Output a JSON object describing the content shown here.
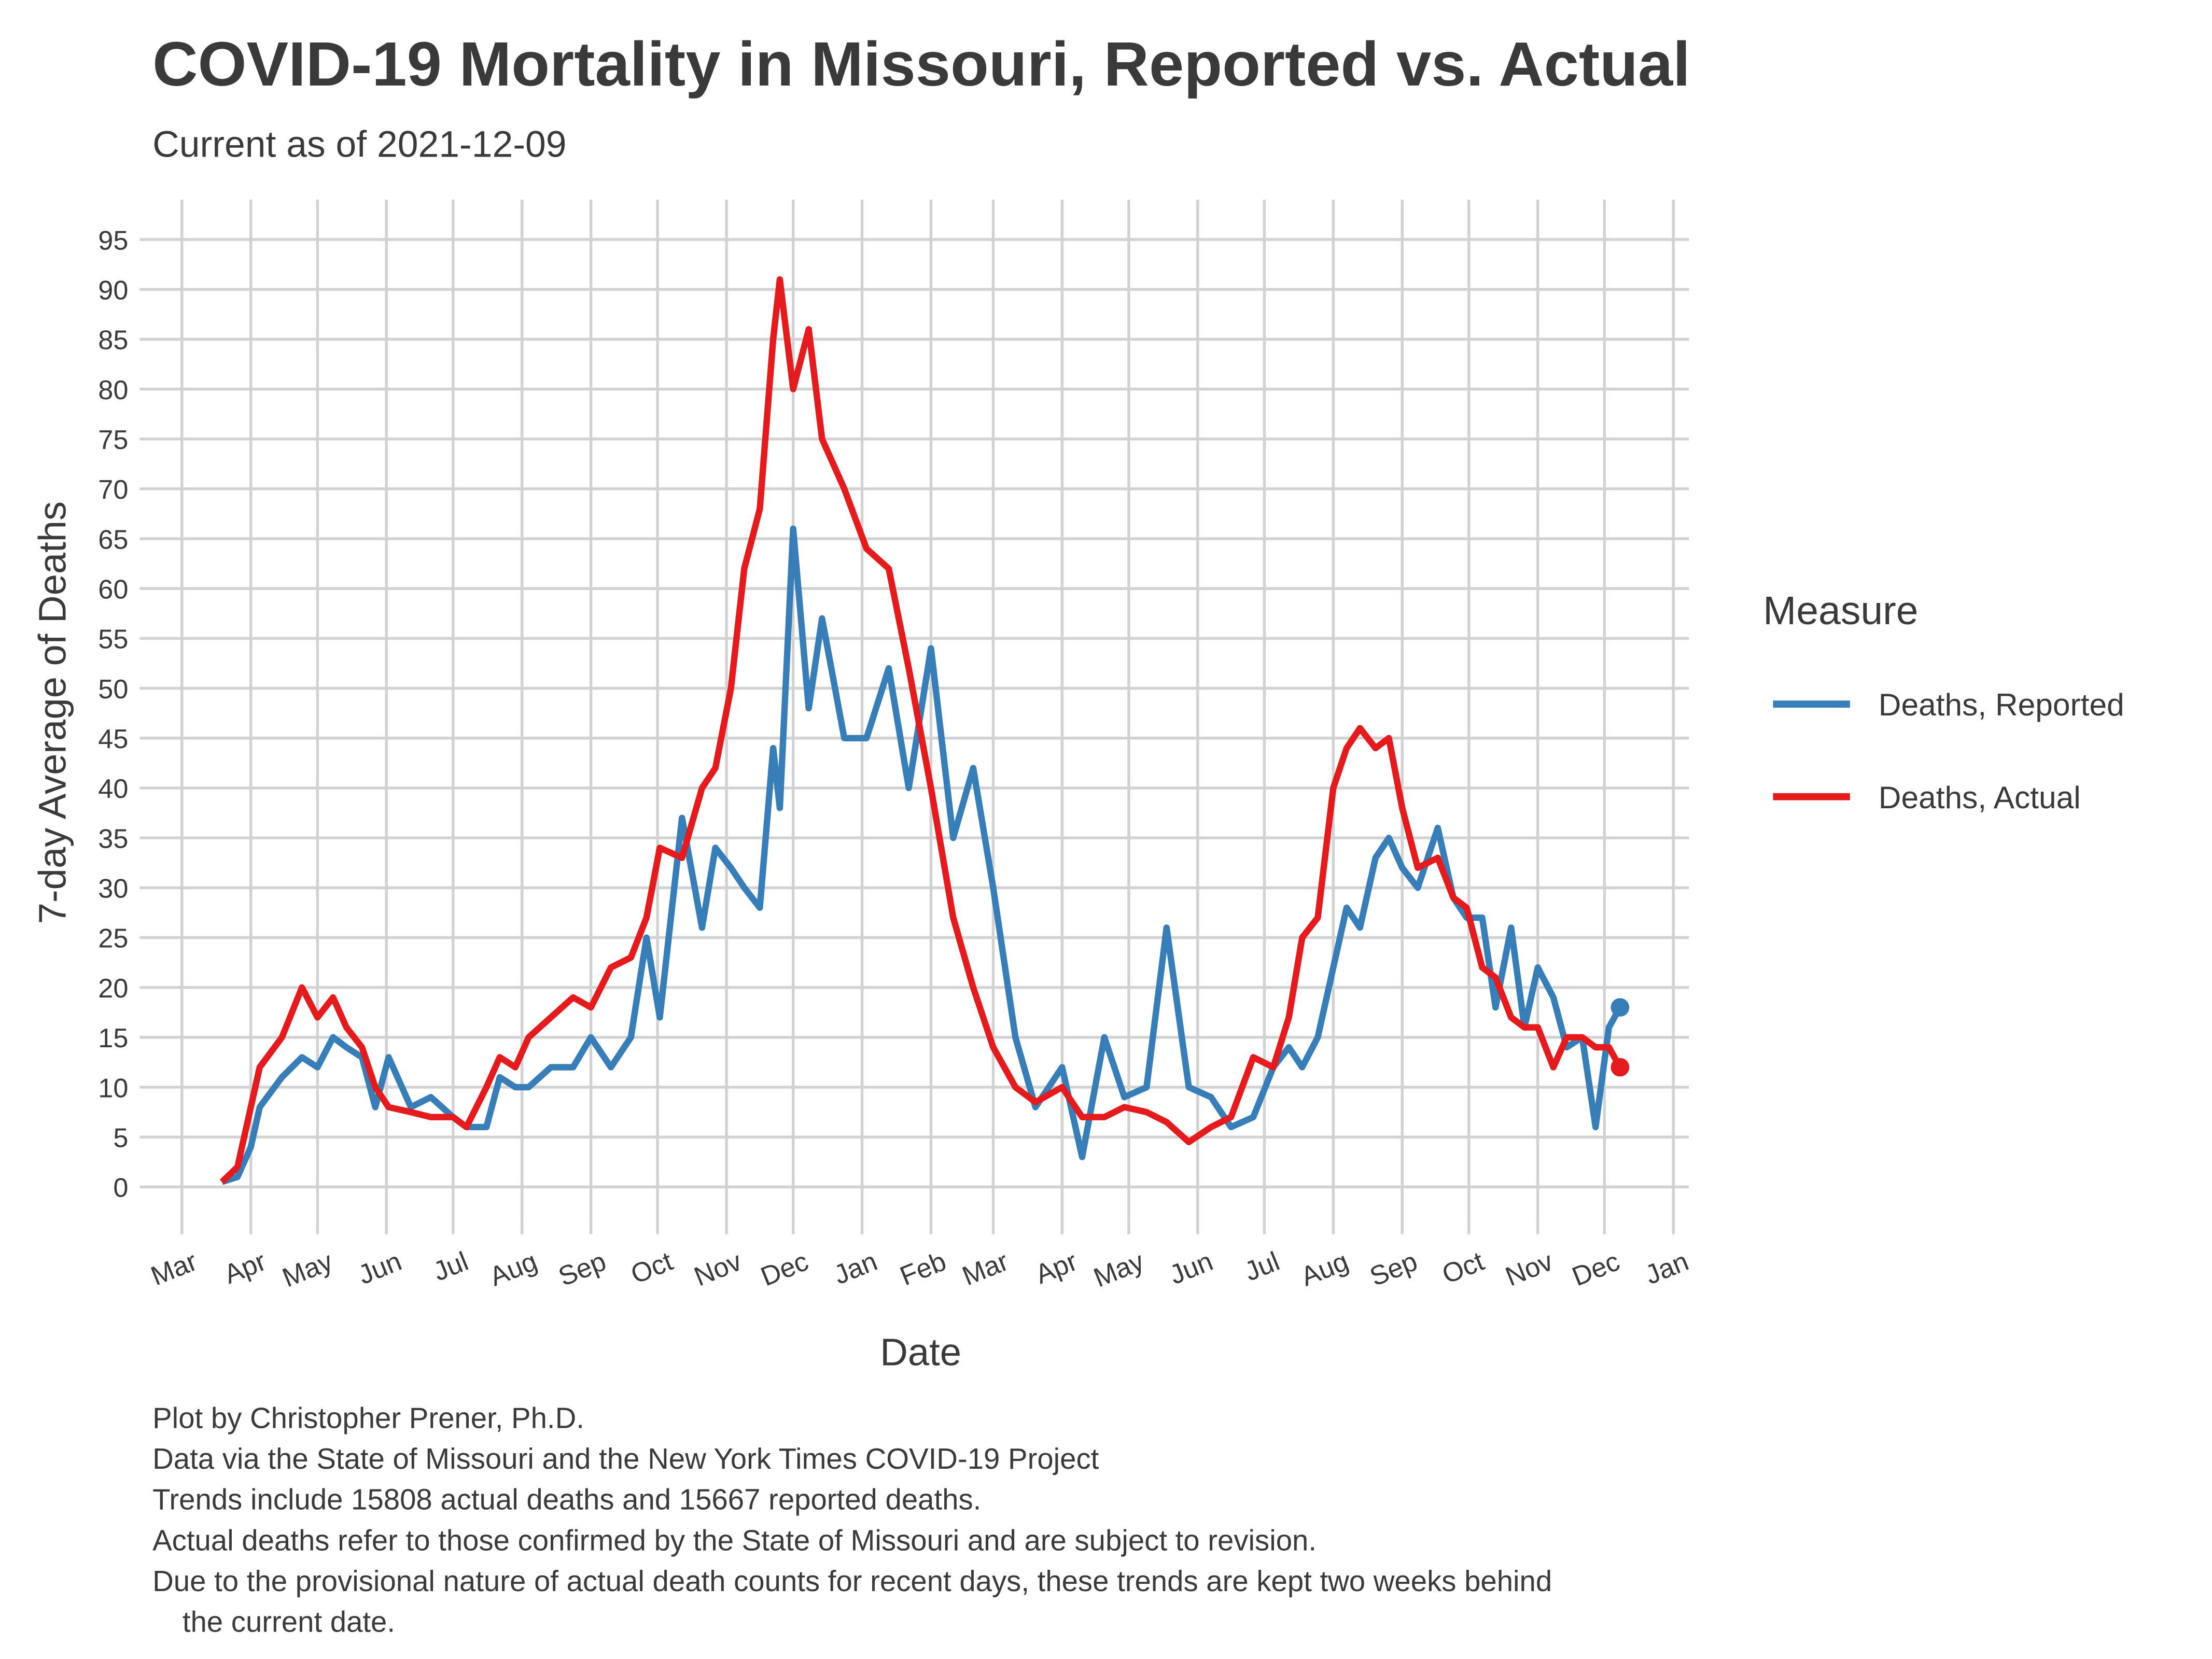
{
  "chart_data": {
    "type": "line",
    "title": "COVID-19 Mortality in Missouri, Reported vs. Actual",
    "subtitle": "Current as of 2021-12-09",
    "x_label": "Date",
    "y_label": "7-day Average of Deaths",
    "legend_title": "Measure",
    "legend_position": "right",
    "grid": true,
    "caption": [
      "Plot by Christopher Prener, Ph.D.",
      "Data via the State of Missouri and the New York Times COVID-19 Project",
      "Trends include 15808 actual deaths and 15667 reported deaths.",
      "Actual deaths refer to those confirmed by the State of Missouri and are subject to revision.",
      "Due to the provisional nature of actual death counts for recent days, these trends are kept two weeks behind",
      "the current date."
    ],
    "xlim": [
      "2020-02-11",
      "2022-01-08"
    ],
    "xticks": [
      {
        "value": "2020-03-01",
        "label": "Mar"
      },
      {
        "value": "2020-04-01",
        "label": "Apr"
      },
      {
        "value": "2020-05-01",
        "label": "May"
      },
      {
        "value": "2020-06-01",
        "label": "Jun"
      },
      {
        "value": "2020-07-01",
        "label": "Jul"
      },
      {
        "value": "2020-08-01",
        "label": "Aug"
      },
      {
        "value": "2020-09-01",
        "label": "Sep"
      },
      {
        "value": "2020-10-01",
        "label": "Oct"
      },
      {
        "value": "2020-11-01",
        "label": "Nov"
      },
      {
        "value": "2020-12-01",
        "label": "Dec"
      },
      {
        "value": "2021-01-01",
        "label": "Jan"
      },
      {
        "value": "2021-02-01",
        "label": "Feb"
      },
      {
        "value": "2021-03-01",
        "label": "Mar"
      },
      {
        "value": "2021-04-01",
        "label": "Apr"
      },
      {
        "value": "2021-05-01",
        "label": "May"
      },
      {
        "value": "2021-06-01",
        "label": "Jun"
      },
      {
        "value": "2021-07-01",
        "label": "Jul"
      },
      {
        "value": "2021-08-01",
        "label": "Aug"
      },
      {
        "value": "2021-09-01",
        "label": "Sep"
      },
      {
        "value": "2021-10-01",
        "label": "Oct"
      },
      {
        "value": "2021-11-01",
        "label": "Nov"
      },
      {
        "value": "2021-12-01",
        "label": "Dec"
      },
      {
        "value": "2022-01-01",
        "label": "Jan"
      }
    ],
    "ylim": [
      -3.6,
      99
    ],
    "yticks": [
      0,
      5,
      10,
      15,
      20,
      25,
      30,
      35,
      40,
      45,
      50,
      55,
      60,
      65,
      70,
      75,
      80,
      85,
      90,
      95
    ],
    "x": [
      "2020-03-19",
      "2020-03-26",
      "2020-04-01",
      "2020-04-05",
      "2020-04-15",
      "2020-04-24",
      "2020-05-01",
      "2020-05-08",
      "2020-05-14",
      "2020-05-21",
      "2020-05-27",
      "2020-06-02",
      "2020-06-12",
      "2020-06-21",
      "2020-07-01",
      "2020-07-07",
      "2020-07-16",
      "2020-07-22",
      "2020-07-29",
      "2020-08-04",
      "2020-08-14",
      "2020-08-24",
      "2020-09-01",
      "2020-09-10",
      "2020-09-19",
      "2020-09-26",
      "2020-10-02",
      "2020-10-12",
      "2020-10-21",
      "2020-10-27",
      "2020-11-03",
      "2020-11-09",
      "2020-11-16",
      "2020-11-22",
      "2020-11-25",
      "2020-12-01",
      "2020-12-08",
      "2020-12-14",
      "2020-12-24",
      "2021-01-03",
      "2021-01-13",
      "2021-01-22",
      "2021-02-01",
      "2021-02-11",
      "2021-02-20",
      "2021-03-01",
      "2021-03-11",
      "2021-03-20",
      "2021-04-01",
      "2021-04-10",
      "2021-04-20",
      "2021-04-29",
      "2021-05-09",
      "2021-05-18",
      "2021-05-28",
      "2021-06-07",
      "2021-06-16",
      "2021-06-26",
      "2021-07-05",
      "2021-07-12",
      "2021-07-18",
      "2021-07-25",
      "2021-08-01",
      "2021-08-07",
      "2021-08-13",
      "2021-08-20",
      "2021-08-26",
      "2021-09-01",
      "2021-09-08",
      "2021-09-17",
      "2021-09-24",
      "2021-09-30",
      "2021-10-07",
      "2021-10-13",
      "2021-10-20",
      "2021-10-26",
      "2021-11-01",
      "2021-11-08",
      "2021-11-14",
      "2021-11-21",
      "2021-11-27",
      "2021-12-03",
      "2021-12-08"
    ],
    "series": [
      {
        "name": "Deaths, Reported",
        "color": "#377eb8",
        "values": [
          0.5,
          1,
          4,
          8,
          11,
          13,
          12,
          15,
          14,
          13,
          8,
          13,
          8,
          9,
          7,
          6,
          6,
          11,
          10,
          10,
          12,
          12,
          15,
          12,
          15,
          25,
          17,
          37,
          26,
          34,
          32,
          30,
          28,
          44,
          38,
          66,
          48,
          57,
          45,
          45,
          52,
          40,
          54,
          35,
          42,
          30,
          15,
          8,
          12,
          3,
          15,
          9,
          10,
          26,
          10,
          9,
          6,
          7,
          12,
          14,
          12,
          15,
          22,
          28,
          26,
          33,
          35,
          32,
          30,
          36,
          29,
          27,
          27,
          18,
          26,
          16,
          22,
          19,
          14,
          15,
          6,
          16,
          18
        ]
      },
      {
        "name": "Deaths, Actual",
        "color": "#e41a1c",
        "values": [
          0.5,
          2,
          8,
          12,
          15,
          20,
          17,
          19,
          16,
          14,
          10,
          8,
          7.5,
          7,
          7,
          6,
          10,
          13,
          12,
          15,
          17,
          19,
          18,
          22,
          23,
          27,
          34,
          33,
          40,
          42,
          50,
          62,
          68,
          85,
          91,
          80,
          86,
          75,
          70,
          64,
          62,
          52,
          40,
          27,
          20,
          14,
          10,
          8.5,
          10,
          7,
          7,
          8,
          7.5,
          6.5,
          4.5,
          6,
          7,
          13,
          12,
          17,
          25,
          27,
          40,
          44,
          46,
          44,
          45,
          38,
          32,
          33,
          29,
          28,
          22,
          21,
          17,
          16,
          16,
          12,
          15,
          15,
          14,
          14,
          12
        ]
      }
    ]
  }
}
